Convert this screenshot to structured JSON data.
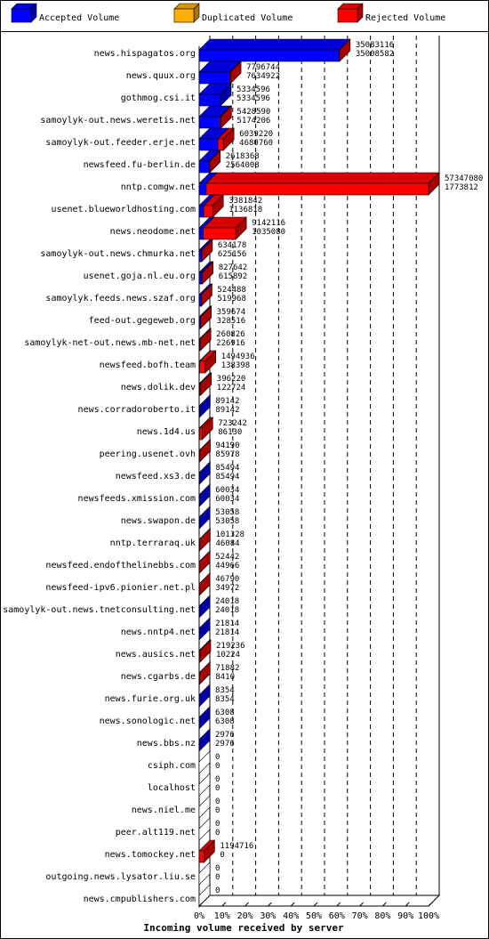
{
  "legend": {
    "items": [
      {
        "label": "Accepted Volume",
        "color": "#0000ff"
      },
      {
        "label": "Duplicated Volume",
        "color": "#ffb000"
      },
      {
        "label": "Rejected Volume",
        "color": "#ff0000"
      }
    ]
  },
  "chart_data": {
    "type": "bar",
    "orientation": "horizontal",
    "stacked": true,
    "xlabel": "Incoming volume received by server",
    "x_ticks": [
      "0%",
      "10%",
      "20%",
      "30%",
      "40%",
      "50%",
      "60%",
      "70%",
      "80%",
      "90%",
      "100%"
    ],
    "xlim": [
      0,
      57347080
    ],
    "grid": true,
    "legend_position": "top",
    "rows": [
      {
        "server": "news.hispagatos.org",
        "total": 35083116,
        "accepted": 35008582
      },
      {
        "server": "news.quux.org",
        "total": 7796744,
        "accepted": 7634922
      },
      {
        "server": "gothmog.csi.it",
        "total": 5334596,
        "accepted": 5334596
      },
      {
        "server": "samoylyk-out.news.weretis.net",
        "total": 5428590,
        "accepted": 5174206
      },
      {
        "server": "samoylyk-out.feeder.erje.net",
        "total": 6039220,
        "accepted": 4680760
      },
      {
        "server": "newsfeed.fu-berlin.de",
        "total": 2618368,
        "accepted": 2564008
      },
      {
        "server": "nntp.comgw.net",
        "total": 57347080,
        "accepted": 1773812
      },
      {
        "server": "usenet.blueworldhosting.com",
        "total": 3381842,
        "accepted": 1136818
      },
      {
        "server": "news.neodome.net",
        "total": 9142116,
        "accepted": 1035080
      },
      {
        "server": "samoylyk-out.news.chmurka.net",
        "total": 634178,
        "accepted": 625156
      },
      {
        "server": "usenet.goja.nl.eu.org",
        "total": 827642,
        "accepted": 615892
      },
      {
        "server": "samoylyk.feeds.news.szaf.org",
        "total": 524488,
        "accepted": 519968
      },
      {
        "server": "feed-out.gegeweb.org",
        "total": 359674,
        "accepted": 328516
      },
      {
        "server": "samoylyk-net-out.news.mb-net.net",
        "total": 260826,
        "accepted": 226916
      },
      {
        "server": "newsfeed.bofh.team",
        "total": 1494936,
        "accepted": 138398
      },
      {
        "server": "news.dolik.dev",
        "total": 396220,
        "accepted": 122724
      },
      {
        "server": "news.corradoroberto.it",
        "total": 89142,
        "accepted": 89142
      },
      {
        "server": "news.1d4.us",
        "total": 723242,
        "accepted": 86130
      },
      {
        "server": "peering.usenet.ovh",
        "total": 94190,
        "accepted": 85978
      },
      {
        "server": "newsfeed.xs3.de",
        "total": 85494,
        "accepted": 85494
      },
      {
        "server": "newsfeeds.xmission.com",
        "total": 60034,
        "accepted": 60034
      },
      {
        "server": "news.swapon.de",
        "total": 53058,
        "accepted": 53058
      },
      {
        "server": "nntp.terraraq.uk",
        "total": 101328,
        "accepted": 46084
      },
      {
        "server": "newsfeed.endofthelinebbs.com",
        "total": 52442,
        "accepted": 44966
      },
      {
        "server": "newsfeed-ipv6.pionier.net.pl",
        "total": 46790,
        "accepted": 34972
      },
      {
        "server": "samoylyk-out.news.tnetconsulting.net",
        "total": 24018,
        "accepted": 24018
      },
      {
        "server": "news.nntp4.net",
        "total": 21814,
        "accepted": 21814
      },
      {
        "server": "news.ausics.net",
        "total": 219236,
        "accepted": 10224
      },
      {
        "server": "news.cgarbs.de",
        "total": 71882,
        "accepted": 8410
      },
      {
        "server": "news.furie.org.uk",
        "total": 8354,
        "accepted": 8354
      },
      {
        "server": "news.sonologic.net",
        "total": 6308,
        "accepted": 6308
      },
      {
        "server": "news.bbs.nz",
        "total": 2976,
        "accepted": 2976
      },
      {
        "server": "csiph.com",
        "total": 0,
        "accepted": 0
      },
      {
        "server": "localhost",
        "total": 0,
        "accepted": 0
      },
      {
        "server": "news.niel.me",
        "total": 0,
        "accepted": 0
      },
      {
        "server": "peer.alt119.net",
        "total": 0,
        "accepted": 0
      },
      {
        "server": "news.tomockey.net",
        "total": 1194716,
        "accepted": 0
      },
      {
        "server": "outgoing.news.lysator.liu.se",
        "total": 0,
        "accepted": 0
      },
      {
        "server": "news.cmpublishers.com",
        "total": 0,
        "accepted": 0
      }
    ]
  }
}
